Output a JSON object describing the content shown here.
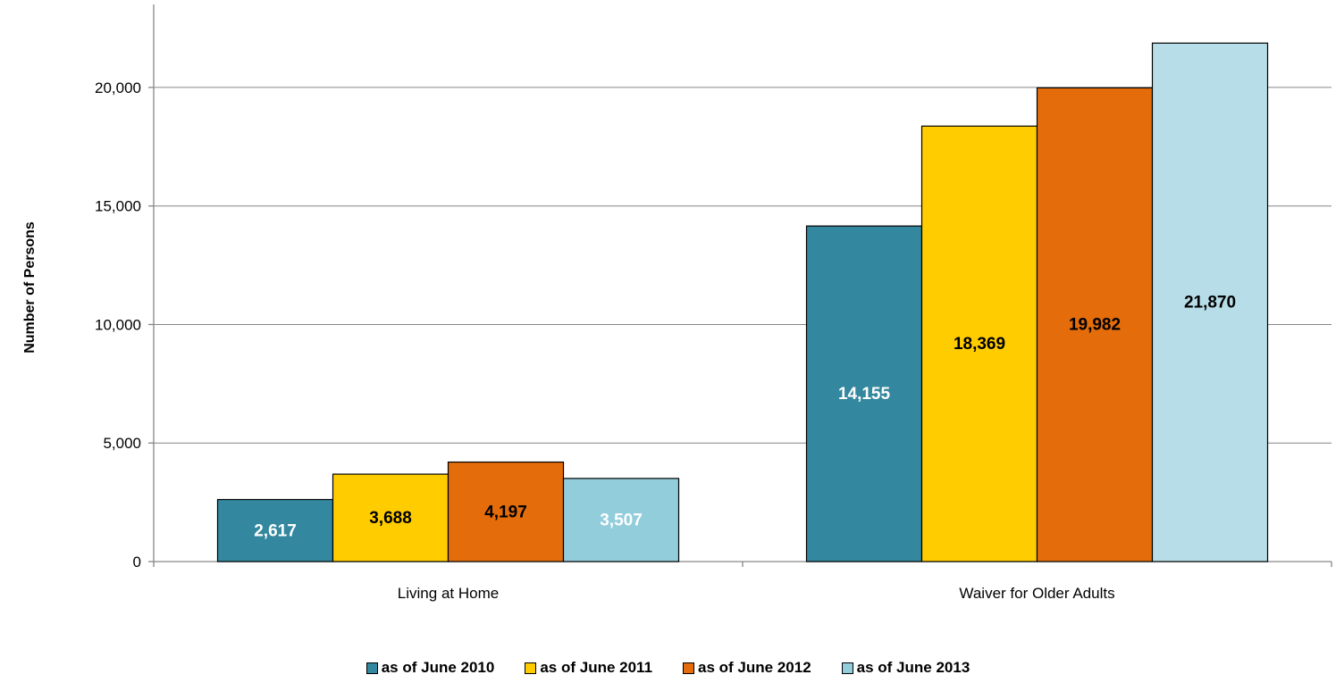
{
  "chart_data": {
    "type": "bar",
    "categories": [
      "Living at Home",
      "Waiver for Older Adults"
    ],
    "series": [
      {
        "name": "as of June 2010",
        "color": "#33879E",
        "label_color": "#FFFFFF",
        "values": [
          2617,
          14155
        ]
      },
      {
        "name": "as of June 2011",
        "color": "#FFCC00",
        "label_color": "#000000",
        "values": [
          3688,
          18369
        ]
      },
      {
        "name": "as of June 2012",
        "color": "#E46C0A",
        "label_color": "#000000",
        "values": [
          4197,
          19982
        ]
      },
      {
        "name": "as of June 2013",
        "color": "#92CDDC",
        "label_color": "#000000",
        "label_colors": [
          "#FFFFFF",
          "#000000"
        ],
        "values": [
          3507,
          21870
        ]
      }
    ],
    "series_fill_override": {
      "as of June 2013": [
        "#92CDDC",
        "#B7DEE8"
      ]
    },
    "data_labels": [
      [
        "2,617",
        "14,155"
      ],
      [
        "3,688",
        "18,369"
      ],
      [
        "4,197",
        "19,982"
      ],
      [
        "3,507",
        "21,870"
      ]
    ],
    "ylabel": "Number of Persons",
    "xlabel": "",
    "title": "",
    "ylim": [
      0,
      23500
    ],
    "yticks": [
      0,
      5000,
      10000,
      15000,
      20000
    ],
    "ytick_labels": [
      "0",
      "5,000",
      "10,000",
      "15,000",
      "20,000"
    ],
    "grid": true,
    "legend_position": "bottom"
  }
}
